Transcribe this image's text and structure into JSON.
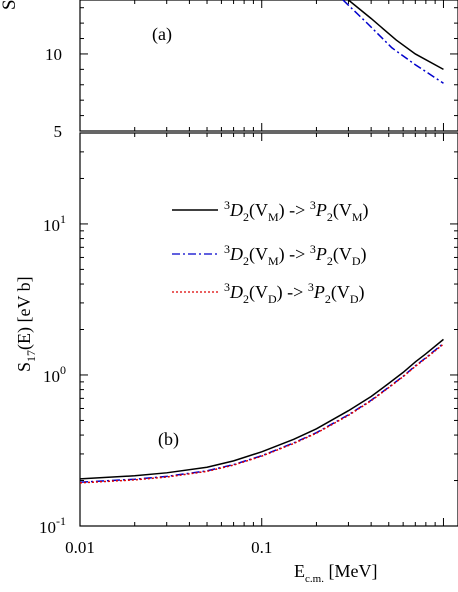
{
  "chart_data": [
    {
      "panel_label": "(a)",
      "type": "line",
      "y_scale": "linear",
      "ylim": [
        5,
        13.5
      ],
      "y_ticks_major": [
        {
          "value": 5,
          "label": "5"
        },
        {
          "value": 10,
          "label": "10"
        }
      ],
      "ylabel": "S",
      "series": [
        {
          "style": "solid",
          "color": "#000000",
          "x": [
            0.3,
            0.4,
            0.55,
            0.7,
            1.0
          ],
          "y": [
            13.5,
            12.3,
            10.9,
            10.0,
            9.0
          ]
        },
        {
          "style": "dashdot",
          "color": "#0000cc",
          "x": [
            0.28,
            0.38,
            0.52,
            0.7,
            1.0
          ],
          "y": [
            13.5,
            12.0,
            10.4,
            9.3,
            8.1
          ]
        }
      ]
    },
    {
      "panel_label": "(b)",
      "type": "line",
      "x_scale": "log",
      "y_scale": "log",
      "xlim": [
        0.01,
        1.0
      ],
      "ylim": [
        0.1,
        40
      ],
      "x_ticks_major": [
        {
          "value": 0.01,
          "label": "0.01"
        },
        {
          "value": 0.1,
          "label": "0.1"
        }
      ],
      "y_ticks_major": [
        {
          "value": 0.1,
          "base": "10",
          "exp": "-1"
        },
        {
          "value": 1,
          "base": "10",
          "exp": "0"
        },
        {
          "value": 10,
          "base": "10",
          "exp": "1"
        }
      ],
      "xlabel": {
        "main": "E",
        "sub": "c.m.",
        "rest": " [MeV]"
      },
      "ylabel": {
        "main": "S",
        "sub": "17",
        "rest": "(E) [eV b]"
      },
      "legend_position": "top-right",
      "series": [
        {
          "legend": {
            "pre": "3",
            "state1": "D",
            "sub1": "2",
            "pot1": "M",
            "arrow": " -> ",
            "state2": "P",
            "sub2": "2",
            "pot2": "M"
          },
          "style": "solid",
          "color": "#000000",
          "x": [
            0.01,
            0.02,
            0.03,
            0.05,
            0.07,
            0.1,
            0.15,
            0.2,
            0.3,
            0.4,
            0.5,
            0.6,
            0.7,
            0.8,
            1.0
          ],
          "y": [
            0.205,
            0.215,
            0.225,
            0.245,
            0.27,
            0.31,
            0.375,
            0.44,
            0.58,
            0.72,
            0.88,
            1.04,
            1.22,
            1.38,
            1.72
          ]
        },
        {
          "legend": {
            "pre": "3",
            "state1": "D",
            "sub1": "2",
            "pot1": "M",
            "arrow": " -> ",
            "state2": "P",
            "sub2": "2",
            "pot2": "D"
          },
          "style": "dashdot",
          "color": "#0000cc",
          "x": [
            0.01,
            0.02,
            0.03,
            0.05,
            0.07,
            0.1,
            0.15,
            0.2,
            0.3,
            0.4,
            0.5,
            0.6,
            0.7,
            0.8,
            1.0
          ],
          "y": [
            0.195,
            0.204,
            0.213,
            0.232,
            0.255,
            0.292,
            0.355,
            0.415,
            0.545,
            0.68,
            0.83,
            0.98,
            1.15,
            1.3,
            1.62
          ]
        },
        {
          "legend": {
            "pre": "3",
            "state1": "D",
            "sub1": "2",
            "pot1": "D",
            "arrow": " -> ",
            "state2": "P",
            "sub2": "2",
            "pot2": "D"
          },
          "style": "dotted",
          "color": "#dd0000",
          "x": [
            0.01,
            0.02,
            0.03,
            0.05,
            0.07,
            0.1,
            0.15,
            0.2,
            0.3,
            0.4,
            0.5,
            0.6,
            0.7,
            0.8,
            1.0
          ],
          "y": [
            0.193,
            0.202,
            0.211,
            0.23,
            0.253,
            0.29,
            0.352,
            0.412,
            0.54,
            0.675,
            0.825,
            0.975,
            1.14,
            1.29,
            1.6
          ]
        }
      ]
    }
  ]
}
